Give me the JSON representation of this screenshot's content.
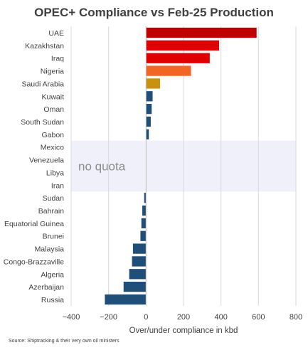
{
  "chart_data": {
    "type": "bar",
    "orientation": "horizontal",
    "title": "OPEC+ Compliance vs Feb-25 Production",
    "xlabel": "Over/under compliance in kbd",
    "ylabel": "",
    "xlim": [
      -400,
      800
    ],
    "x_ticks": [
      -400,
      -200,
      0,
      200,
      400,
      600,
      800
    ],
    "grid": true,
    "categories": [
      "UAE",
      "Kazakhstan",
      "Iraq",
      "Nigeria",
      "Saudi Arabia",
      "Kuwait",
      "Oman",
      "South Sudan",
      "Gabon",
      "Mexico",
      "Venezuela",
      "Libya",
      "Iran",
      "Sudan",
      "Bahrain",
      "Equatorial Guinea",
      "Brunei",
      "Malaysia",
      "Congo-Brazzaville",
      "Algeria",
      "Azerbaijan",
      "Russia"
    ],
    "values": [
      590,
      390,
      340,
      240,
      75,
      35,
      30,
      25,
      15,
      null,
      null,
      null,
      null,
      -10,
      -20,
      -25,
      -30,
      -70,
      -75,
      -90,
      -120,
      -220
    ],
    "colors": [
      "#c00000",
      "#e00000",
      "#e00000",
      "#f26522",
      "#c9920e",
      "#1f4e79",
      "#1f4e79",
      "#1f4e79",
      "#1f4e79",
      null,
      null,
      null,
      null,
      "#1f4e79",
      "#1f4e79",
      "#1f4e79",
      "#1f4e79",
      "#1f4e79",
      "#1f4e79",
      "#1f4e79",
      "#1f4e79",
      "#1f4e79"
    ],
    "annotation": {
      "text": "no quota",
      "categories": [
        "Mexico",
        "Venezuela",
        "Libya",
        "Iran"
      ],
      "band_color": "#f0f0fb"
    },
    "source": "Source: Shiptracking & their very own oil ministers"
  }
}
